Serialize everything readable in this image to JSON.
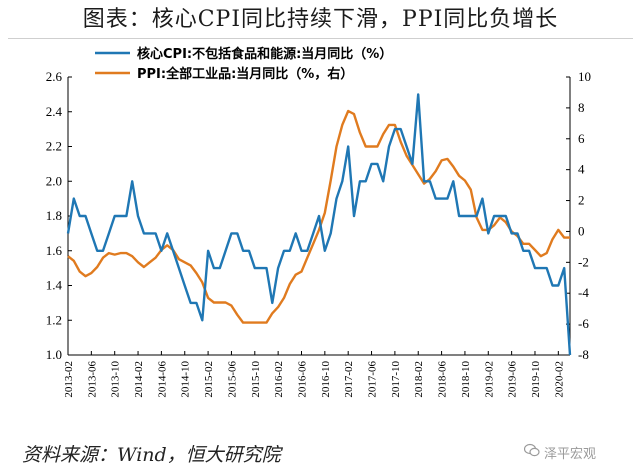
{
  "title": "图表：核心CPI同比持续下滑，PPI同比负增长",
  "source": "资料来源：Wind，恒大研究院",
  "watermark": "泽平宏观",
  "colors": {
    "core_cpi": "#1f77b4",
    "ppi": "#e07b1f"
  },
  "chart_data": {
    "type": "line",
    "legend_position": "top-center",
    "grid": false,
    "x_tick_labels": [
      "2013-02",
      "2013-06",
      "2013-10",
      "2014-02",
      "2014-06",
      "2014-10",
      "2015-02",
      "2015-06",
      "2015-10",
      "2016-02",
      "2016-06",
      "2016-10",
      "2017-02",
      "2017-06",
      "2017-10",
      "2018-02",
      "2018-06",
      "2018-10",
      "2019-02",
      "2019-06",
      "2019-10",
      "2020-02"
    ],
    "y_left": {
      "lim": [
        1.0,
        2.6
      ],
      "ticks": [
        "1.0",
        "1.2",
        "1.4",
        "1.6",
        "1.8",
        "2.0",
        "2.2",
        "2.4",
        "2.6"
      ]
    },
    "y_right": {
      "lim": [
        -8,
        10
      ],
      "ticks": [
        "-8",
        "-6",
        "-4",
        "-2",
        "0",
        "2",
        "4",
        "6",
        "8",
        "10"
      ]
    },
    "series": [
      {
        "name": "核心CPI:不包括食品和能源:当月同比（%）",
        "axis": "left",
        "start": "2013-02",
        "values": [
          1.7,
          1.9,
          1.8,
          1.8,
          1.7,
          1.6,
          1.6,
          1.7,
          1.8,
          1.8,
          1.8,
          2.0,
          1.8,
          1.7,
          1.7,
          1.7,
          1.6,
          1.7,
          1.6,
          1.5,
          1.4,
          1.3,
          1.3,
          1.2,
          1.6,
          1.5,
          1.5,
          1.6,
          1.7,
          1.7,
          1.6,
          1.6,
          1.5,
          1.5,
          1.5,
          1.3,
          1.5,
          1.6,
          1.6,
          1.7,
          1.6,
          1.6,
          1.7,
          1.8,
          1.6,
          1.7,
          1.9,
          2.0,
          2.2,
          1.8,
          2.0,
          2.0,
          2.1,
          2.1,
          2.0,
          2.2,
          2.3,
          2.3,
          2.2,
          2.1,
          2.5,
          2.0,
          2.0,
          1.9,
          1.9,
          1.9,
          2.0,
          1.8,
          1.8,
          1.8,
          1.8,
          1.9,
          1.7,
          1.8,
          1.8,
          1.8,
          1.7,
          1.7,
          1.6,
          1.6,
          1.5,
          1.5,
          1.5,
          1.4,
          1.4,
          1.5,
          1.0
        ]
      },
      {
        "name": "PPI:全部工业品:当月同比（%，右）",
        "axis": "right",
        "start": "2013-02",
        "values": [
          -1.6,
          -1.9,
          -2.6,
          -2.9,
          -2.7,
          -2.3,
          -1.7,
          -1.4,
          -1.5,
          -1.4,
          -1.4,
          -1.6,
          -2.0,
          -2.3,
          -2.0,
          -1.7,
          -1.2,
          -0.9,
          -1.2,
          -1.8,
          -2.0,
          -2.2,
          -2.7,
          -3.3,
          -4.3,
          -4.6,
          -4.6,
          -4.6,
          -4.8,
          -5.4,
          -5.9,
          -5.9,
          -5.9,
          -5.9,
          -5.9,
          -5.3,
          -4.9,
          -4.3,
          -3.4,
          -2.8,
          -2.6,
          -1.7,
          -0.8,
          0.1,
          1.2,
          3.3,
          5.5,
          6.9,
          7.8,
          7.6,
          6.4,
          5.5,
          5.5,
          5.5,
          6.3,
          6.9,
          6.9,
          5.8,
          4.9,
          4.3,
          3.7,
          3.1,
          3.4,
          3.9,
          4.6,
          4.7,
          4.2,
          3.6,
          3.3,
          2.7,
          0.9,
          0.1,
          0.1,
          0.4,
          0.9,
          0.6,
          0.0,
          -0.3,
          -0.8,
          -0.8,
          -1.2,
          -1.6,
          -1.4,
          -0.5,
          0.1,
          -0.4,
          -0.4
        ]
      }
    ]
  }
}
